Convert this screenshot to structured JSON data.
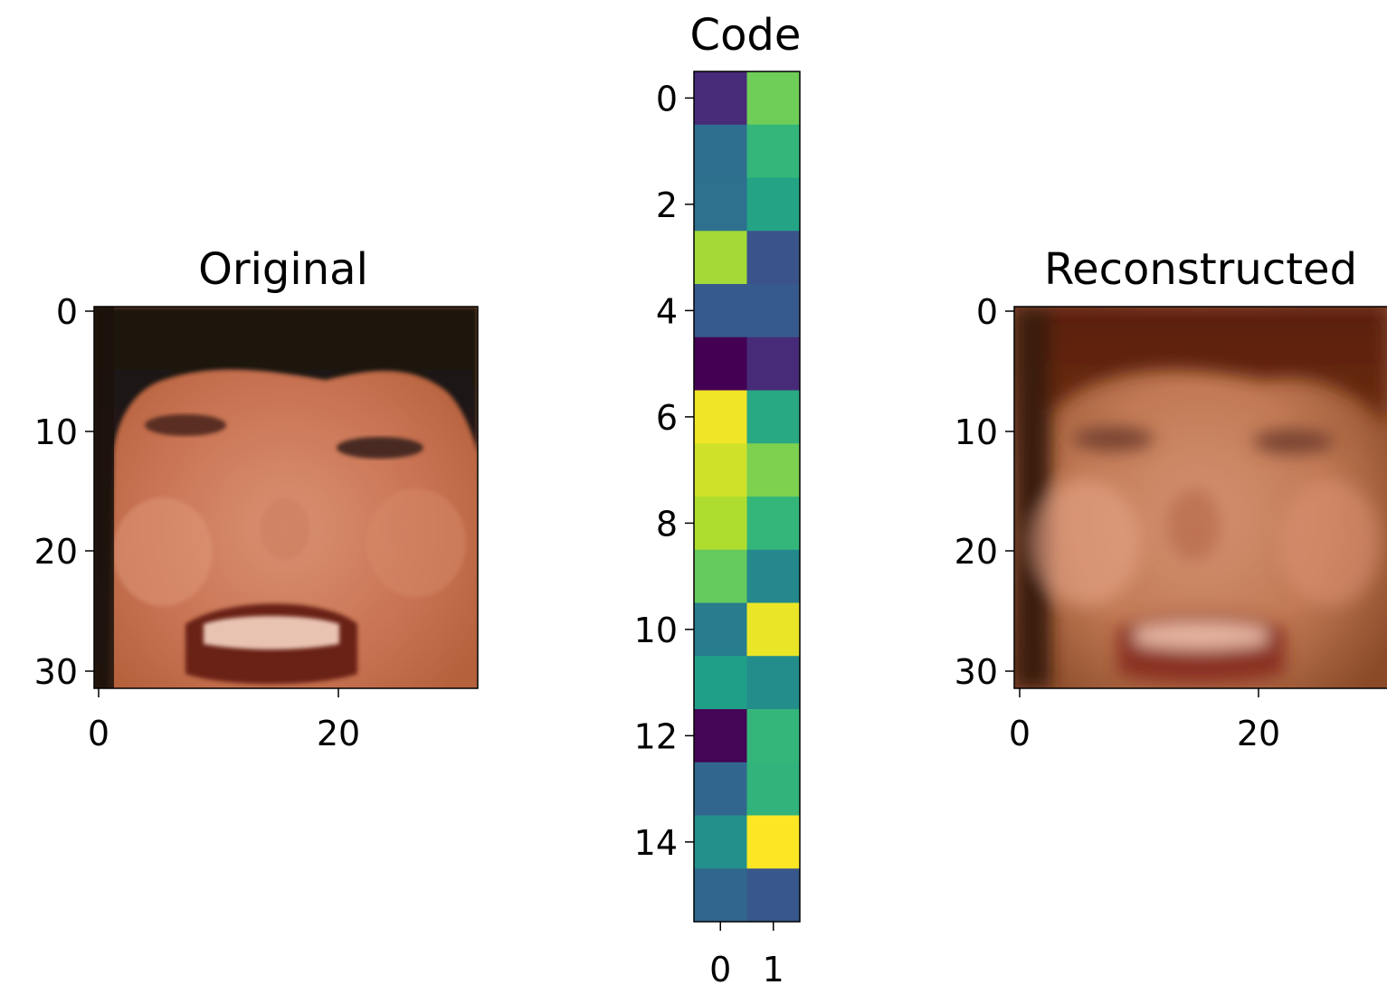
{
  "chart_data": [
    {
      "type": "image",
      "title": "Original",
      "image_size": [
        32,
        32
      ],
      "xticks": [
        "0",
        "20"
      ],
      "yticks": [
        "0",
        "10",
        "20",
        "30"
      ]
    },
    {
      "type": "heatmap",
      "title": "Code",
      "colormap": "viridis",
      "rows": 16,
      "cols": 2,
      "xticks": [
        "0",
        "1"
      ],
      "yticks": [
        "0",
        "2",
        "4",
        "6",
        "8",
        "10",
        "12",
        "14"
      ],
      "values": [
        [
          0.12,
          0.78
        ],
        [
          0.36,
          0.66
        ],
        [
          0.37,
          0.58
        ],
        [
          0.86,
          0.26
        ],
        [
          0.28,
          0.28
        ],
        [
          0.0,
          0.12
        ],
        [
          0.98,
          0.6
        ],
        [
          0.93,
          0.8
        ],
        [
          0.88,
          0.66
        ],
        [
          0.76,
          0.47
        ],
        [
          0.42,
          0.97
        ],
        [
          0.56,
          0.49
        ],
        [
          0.01,
          0.66
        ],
        [
          0.33,
          0.65
        ],
        [
          0.5,
          1.0
        ],
        [
          0.33,
          0.27
        ]
      ]
    },
    {
      "type": "image",
      "title": "Reconstructed",
      "image_size": [
        32,
        32
      ],
      "xticks": [
        "0",
        "20"
      ],
      "yticks": [
        "0",
        "10",
        "20",
        "30"
      ]
    }
  ]
}
